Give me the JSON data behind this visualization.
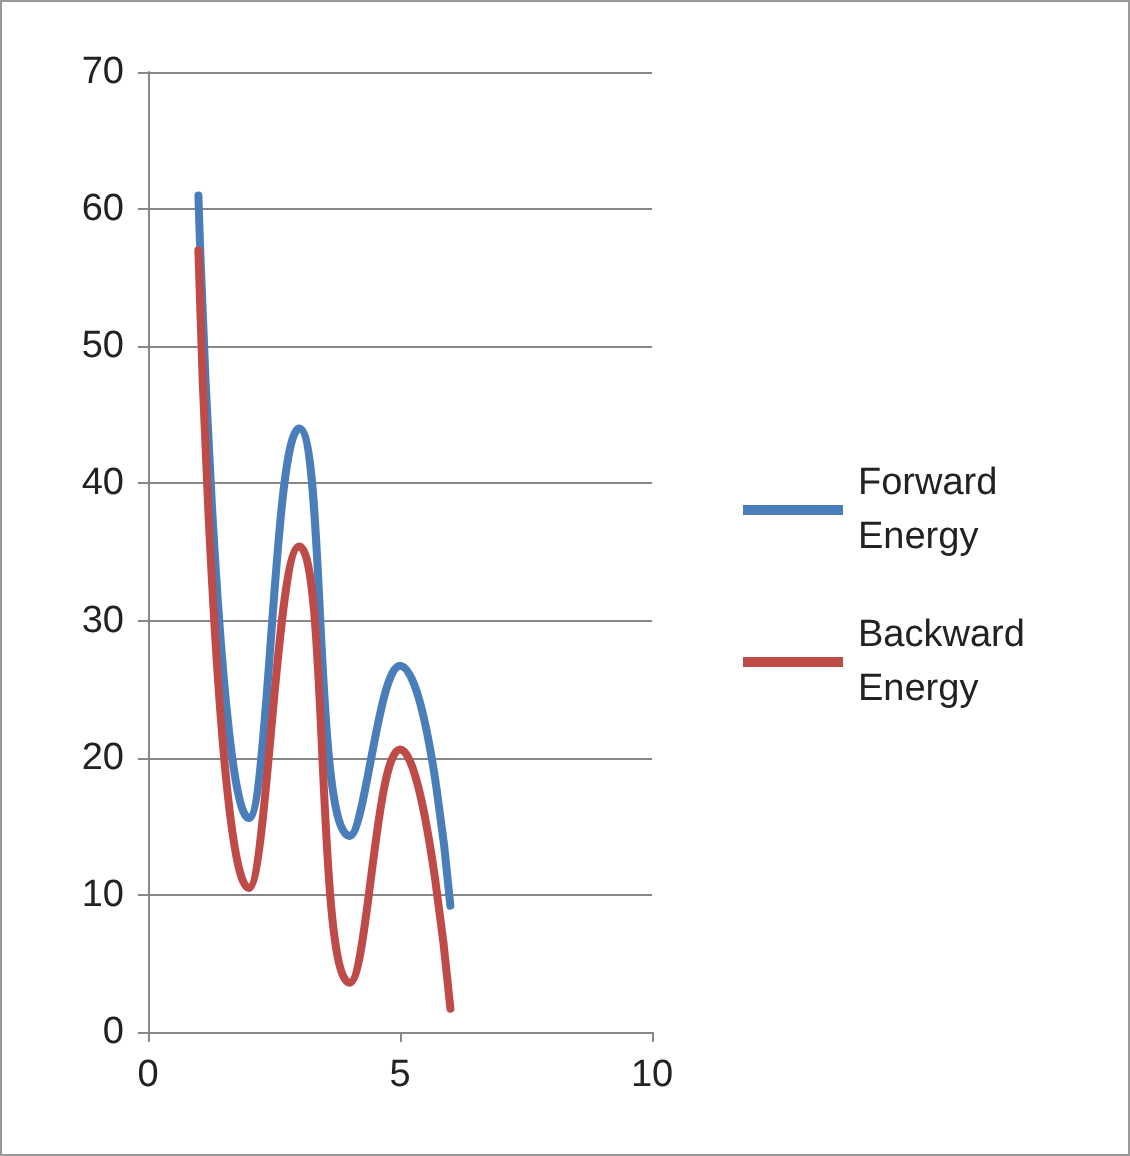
{
  "chart_data": {
    "type": "line",
    "x": [
      1,
      2,
      3,
      4,
      5,
      6
    ],
    "series": [
      {
        "name": "Forward Energy",
        "color": "#4a7ebb",
        "values": [
          61,
          15.6,
          44,
          14.3,
          26.7,
          9.2
        ]
      },
      {
        "name": "Backward Energy",
        "color": "#be4b48",
        "values": [
          57,
          10.5,
          35.4,
          3.6,
          20.6,
          1.7
        ]
      }
    ],
    "xlim": [
      0,
      10
    ],
    "xticks": [
      0,
      5,
      10
    ],
    "ylim": [
      0,
      70
    ],
    "yticks": [
      0,
      10,
      20,
      30,
      40,
      50,
      60,
      70
    ],
    "grid": "y",
    "legend": "right",
    "marker": "none",
    "line_style": "solid"
  }
}
